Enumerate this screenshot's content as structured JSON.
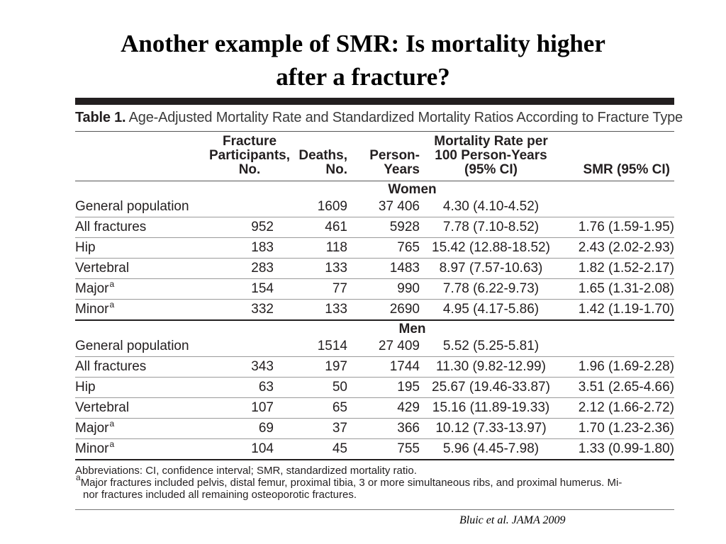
{
  "slide": {
    "title_line1": "Another example of SMR: Is mortality higher",
    "title_line2": "after a fracture?",
    "citation": "Bluic et al. JAMA 2009"
  },
  "table": {
    "caption_label": "Table 1.",
    "caption_text": "Age-Adjusted Mortality Rate and Standardized Mortality Ratios According to Fracture Type",
    "headers": {
      "participants": [
        "Fracture",
        "Participants,",
        "No."
      ],
      "deaths": [
        "Deaths,",
        "No."
      ],
      "person_years": [
        "Person-",
        "Years"
      ],
      "mortality_rate": [
        "Mortality Rate per",
        "100 Person-Years",
        "(95% CI)"
      ],
      "smr": [
        "SMR (95% CI)"
      ]
    },
    "sections": [
      {
        "name": "Women",
        "rows": [
          {
            "label": "General population",
            "sup": "",
            "participants": "",
            "deaths": "1609",
            "person_years": "37 406",
            "rate": "4.30 (4.10-4.52)",
            "smr": ""
          },
          {
            "label": "All fractures",
            "sup": "",
            "participants": "952",
            "deaths": "461",
            "person_years": "5928",
            "rate": "7.78 (7.10-8.52)",
            "smr": "1.76 (1.59-1.95)"
          },
          {
            "label": "Hip",
            "sup": "",
            "participants": "183",
            "deaths": "118",
            "person_years": "765",
            "rate": "15.42 (12.88-18.52)",
            "smr": "2.43 (2.02-2.93)"
          },
          {
            "label": "Vertebral",
            "sup": "",
            "participants": "283",
            "deaths": "133",
            "person_years": "1483",
            "rate": "8.97 (7.57-10.63)",
            "smr": "1.82 (1.52-2.17)"
          },
          {
            "label": "Major",
            "sup": "a",
            "participants": "154",
            "deaths": "77",
            "person_years": "990",
            "rate": "7.78 (6.22-9.73)",
            "smr": "1.65 (1.31-2.08)"
          },
          {
            "label": "Minor",
            "sup": "a",
            "participants": "332",
            "deaths": "133",
            "person_years": "2690",
            "rate": "4.95 (4.17-5.86)",
            "smr": "1.42 (1.19-1.70)"
          }
        ]
      },
      {
        "name": "Men",
        "rows": [
          {
            "label": "General population",
            "sup": "",
            "participants": "",
            "deaths": "1514",
            "person_years": "27 409",
            "rate": "5.52 (5.25-5.81)",
            "smr": ""
          },
          {
            "label": "All fractures",
            "sup": "",
            "participants": "343",
            "deaths": "197",
            "person_years": "1744",
            "rate": "11.30 (9.82-12.99)",
            "smr": "1.96 (1.69-2.28)"
          },
          {
            "label": "Hip",
            "sup": "",
            "participants": "63",
            "deaths": "50",
            "person_years": "195",
            "rate": "25.67 (19.46-33.87)",
            "smr": "3.51 (2.65-4.66)"
          },
          {
            "label": "Vertebral",
            "sup": "",
            "participants": "107",
            "deaths": "65",
            "person_years": "429",
            "rate": "15.16 (11.89-19.33)",
            "smr": "2.12 (1.66-2.72)"
          },
          {
            "label": "Major",
            "sup": "a",
            "participants": "69",
            "deaths": "37",
            "person_years": "366",
            "rate": "10.12 (7.33-13.97)",
            "smr": "1.70 (1.23-2.36)"
          },
          {
            "label": "Minor",
            "sup": "a",
            "participants": "104",
            "deaths": "45",
            "person_years": "755",
            "rate": "5.96 (4.45-7.98)",
            "smr": "1.33 (0.99-1.80)"
          }
        ]
      }
    ],
    "footnotes": {
      "abbreviations": "Abbreviations: CI, confidence interval; SMR, standardized mortality ratio.",
      "note_marker": "a",
      "note_line1": "Major fractures included pelvis, distal femur, proximal tibia, 3 or more simultaneous ribs, and proximal humerus. Mi-",
      "note_line2": "nor fractures included all remaining osteoporotic fractures."
    }
  }
}
